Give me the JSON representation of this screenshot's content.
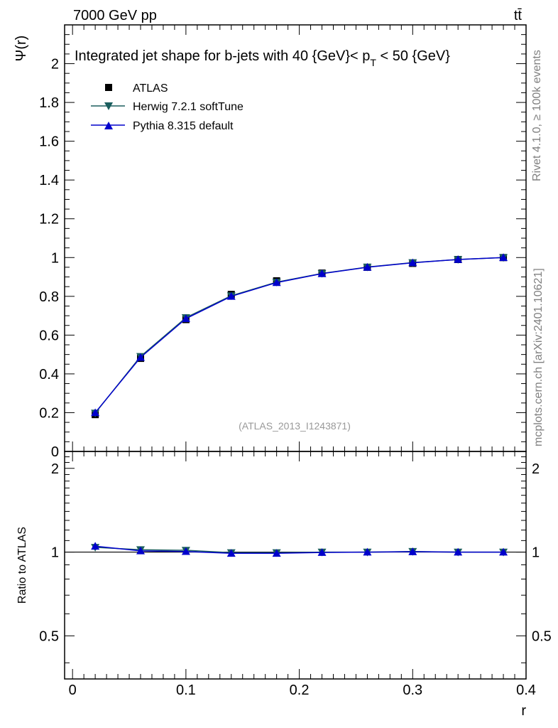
{
  "header": {
    "energy_label": "7000 GeV pp",
    "process_label": "tt̄"
  },
  "side_labels": {
    "rivet": "Rivet 4.1.0, ≥ 100k events",
    "mcplots": "mcplots.cern.ch [arXiv:2401.10621]"
  },
  "chart_data": [
    {
      "type": "line",
      "panel": "main",
      "title_parts": {
        "prefix": "Integrated jet shape for b-jets with 40 {GeV}< p",
        "subscript": "T",
        "suffix": " < 50 {GeV}"
      },
      "ylabel": "Ψ(r)",
      "analysis_id": "(ATLAS_2013_I1243871)",
      "xlim": [
        -0.007,
        0.4
      ],
      "ylim": [
        0,
        2.2
      ],
      "yticks": [
        0,
        0.2,
        0.4,
        0.6,
        0.8,
        1,
        1.2,
        1.4,
        1.6,
        1.8,
        2
      ],
      "ytick_labels": [
        "0",
        "0.2",
        "0.4",
        "0.6",
        "0.8",
        "1",
        "1.2",
        "1.4",
        "1.6",
        "1.8",
        "2"
      ],
      "x": [
        0.02,
        0.06,
        0.1,
        0.14,
        0.18,
        0.22,
        0.26,
        0.3,
        0.34,
        0.38
      ],
      "series": [
        {
          "name": "ATLAS",
          "marker": "square",
          "color": "#000000",
          "values": [
            0.19,
            0.48,
            0.68,
            0.81,
            0.88,
            0.92,
            0.95,
            0.97,
            0.99,
            1.0
          ]
        },
        {
          "name": "Herwig 7.2.1 softTune",
          "marker": "triangle-down",
          "color": "#1b5e5e",
          "values": [
            0.198,
            0.49,
            0.69,
            0.803,
            0.873,
            0.918,
            0.951,
            0.974,
            0.99,
            1.0
          ]
        },
        {
          "name": "Pythia 8.315 default",
          "marker": "triangle-up",
          "color": "#0000cc",
          "values": [
            0.2,
            0.485,
            0.685,
            0.8,
            0.871,
            0.917,
            0.95,
            0.973,
            0.99,
            1.0
          ]
        }
      ],
      "legend": "top-left"
    },
    {
      "type": "line",
      "panel": "ratio",
      "ylabel": "Ratio to ATLAS",
      "xlabel": "r",
      "xlim": [
        -0.007,
        0.4
      ],
      "ylim": [
        0.35,
        2.3
      ],
      "scale": "log",
      "yticks": [
        0.5,
        1,
        2
      ],
      "ytick_labels": [
        "0.5",
        "1",
        "2"
      ],
      "xticks": [
        0,
        0.1,
        0.2,
        0.3,
        0.4
      ],
      "xtick_labels": [
        "0",
        "0.1",
        "0.2",
        "0.3",
        "0.4"
      ],
      "x": [
        0.02,
        0.06,
        0.1,
        0.14,
        0.18,
        0.22,
        0.26,
        0.3,
        0.34,
        0.38
      ],
      "series": [
        {
          "name": "Herwig 7.2.1 softTune",
          "marker": "triangle-down",
          "color": "#1b5e5e",
          "values": [
            1.04,
            1.02,
            1.015,
            0.995,
            0.995,
            1.0,
            1.0,
            1.005,
            1.0,
            1.0
          ]
        },
        {
          "name": "Pythia 8.315 default",
          "marker": "triangle-up",
          "color": "#0000cc",
          "values": [
            1.05,
            1.01,
            1.005,
            0.99,
            0.99,
            0.997,
            1.0,
            1.003,
            1.0,
            1.0
          ]
        }
      ],
      "reference_line": 1
    }
  ]
}
